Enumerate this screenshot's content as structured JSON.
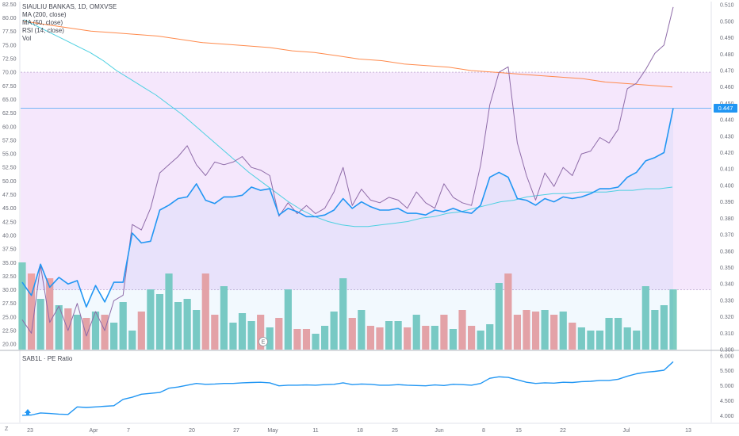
{
  "legend": {
    "title": "SIAULIU BANKAS, 1D, OMXVSE",
    "ma200": "MA (200, close)",
    "ma50": "MA (50, close)",
    "rsi": "RSI (14, close)",
    "vol": "Vol"
  },
  "pe_title": "SAB1L · PE Ratio",
  "last_price_label": "0.447",
  "earnings_marker": "E",
  "corner_z": "Z",
  "colors": {
    "price": "#2196f3",
    "ma200": "#ff8a4c",
    "ma50": "#4dd0e1",
    "rsi": "#8e6ba8",
    "vol_up": "#7ecdc2",
    "vol_down": "#f0a3a3",
    "rsi_band": "#f3e3fc"
  },
  "chart_data": [
    {
      "type": "line",
      "title": "SIAULIU BANKAS, 1D, OMXVSE",
      "x_ticks": [
        "23",
        "Apr",
        "7",
        "20",
        "27",
        "May",
        "11",
        "18",
        "25",
        "Jun",
        "8",
        "15",
        "22",
        "Jul",
        "13"
      ],
      "y_right_ticks": [
        "0.510",
        "0.500",
        "0.490",
        "0.480",
        "0.470",
        "0.460",
        "0.450",
        "0.440",
        "0.430",
        "0.420",
        "0.410",
        "0.400",
        "0.390",
        "0.380",
        "0.370",
        "0.360",
        "0.350",
        "0.340",
        "0.330",
        "0.320",
        "0.310",
        "0.300"
      ],
      "y_right_range": [
        0.3,
        0.512
      ],
      "y_left_ticks": [
        "82.50",
        "80.00",
        "77.50",
        "75.00",
        "72.50",
        "70.00",
        "67.50",
        "65.00",
        "62.50",
        "60.00",
        "57.50",
        "55.00",
        "52.50",
        "50.00",
        "47.50",
        "45.00",
        "42.50",
        "40.00",
        "37.50",
        "35.00",
        "32.50",
        "30.00",
        "27.50",
        "25.00",
        "22.50",
        "20.00"
      ],
      "y_left_range": [
        19.0,
        83.0
      ],
      "rsi_band": [
        30,
        70
      ],
      "series": [
        {
          "name": "SIAULIU BANKAS",
          "axis": "right",
          "values": [
            0.341,
            0.333,
            0.352,
            0.338,
            0.344,
            0.34,
            0.342,
            0.326,
            0.339,
            0.329,
            0.341,
            0.341,
            0.371,
            0.365,
            0.366,
            0.385,
            0.388,
            0.392,
            0.393,
            0.401,
            0.391,
            0.389,
            0.393,
            0.393,
            0.394,
            0.399,
            0.397,
            0.398,
            0.382,
            0.386,
            0.384,
            0.381,
            0.381,
            0.382,
            0.385,
            0.392,
            0.386,
            0.39,
            0.387,
            0.385,
            0.385,
            0.386,
            0.383,
            0.383,
            0.382,
            0.385,
            0.384,
            0.386,
            0.384,
            0.383,
            0.388,
            0.405,
            0.408,
            0.405,
            0.392,
            0.391,
            0.388,
            0.392,
            0.39,
            0.393,
            0.392,
            0.393,
            0.395,
            0.398,
            0.398,
            0.399,
            0.405,
            0.408,
            0.415,
            0.417,
            0.42,
            0.447
          ]
        },
        {
          "name": "MA (200, close)",
          "axis": "right",
          "values": [
            0.5,
            0.498,
            0.496,
            0.494,
            0.493,
            0.492,
            0.491,
            0.489,
            0.487,
            0.486,
            0.485,
            0.484,
            0.482,
            0.481,
            0.479,
            0.477,
            0.476,
            0.474,
            0.473,
            0.472,
            0.47,
            0.469,
            0.468,
            0.467,
            0.466,
            0.465,
            0.463,
            0.462,
            0.461,
            0.46
          ]
        },
        {
          "name": "MA (50, close)",
          "axis": "right",
          "values": [
            0.501,
            0.497,
            0.493,
            0.489,
            0.485,
            0.481,
            0.476,
            0.47,
            0.465,
            0.46,
            0.455,
            0.449,
            0.443,
            0.436,
            0.429,
            0.422,
            0.415,
            0.408,
            0.402,
            0.396,
            0.39,
            0.385,
            0.381,
            0.378,
            0.376,
            0.375,
            0.375,
            0.376,
            0.377,
            0.378,
            0.38,
            0.381,
            0.383,
            0.384,
            0.386,
            0.388,
            0.39,
            0.391,
            0.393,
            0.394,
            0.395,
            0.395,
            0.396,
            0.396,
            0.396,
            0.397,
            0.397,
            0.398,
            0.398,
            0.399
          ]
        },
        {
          "name": "RSI (14, close)",
          "axis": "left",
          "values": [
            24.5,
            22.0,
            34.5,
            24.0,
            27.0,
            22.5,
            27.5,
            21.5,
            26.0,
            22.5,
            28.0,
            29.0,
            42.0,
            41.0,
            45.0,
            51.5,
            53.0,
            54.5,
            56.5,
            53.0,
            51.0,
            53.5,
            53.0,
            53.5,
            54.5,
            52.5,
            52.0,
            51.0,
            43.5,
            46.0,
            44.0,
            45.5,
            44.0,
            45.0,
            48.0,
            52.5,
            45.5,
            48.5,
            46.5,
            46.0,
            47.0,
            46.5,
            45.0,
            48.0,
            46.0,
            45.0,
            49.5,
            47.0,
            46.0,
            45.5,
            53.0,
            64.0,
            70.0,
            71.0,
            57.0,
            51.0,
            46.5,
            51.5,
            49.0,
            52.5,
            51.0,
            55.0,
            55.5,
            58.0,
            57.0,
            59.5,
            67.0,
            68.0,
            70.5,
            73.5,
            75.0,
            82.0
          ]
        },
        {
          "name": "Vol",
          "axis": "volume",
          "values": [
            55,
            48,
            32,
            45,
            28,
            26,
            22,
            20,
            24,
            22,
            17,
            30,
            12,
            24,
            38,
            35,
            48,
            30,
            32,
            25,
            48,
            22,
            40,
            17,
            23,
            18,
            22,
            14,
            20,
            38,
            13,
            13,
            10,
            15,
            24,
            45,
            20,
            25,
            15,
            14,
            18,
            18,
            14,
            22,
            15,
            15,
            22,
            13,
            25,
            15,
            12,
            16,
            42,
            48,
            22,
            25,
            24,
            25,
            22,
            24,
            17,
            14,
            12,
            12,
            20,
            20,
            14,
            12,
            40,
            25,
            28,
            38
          ]
        }
      ]
    },
    {
      "type": "line",
      "title": "SAB1L · PE Ratio",
      "y_right_ticks": [
        "6.000",
        "5.500",
        "5.000",
        "4.500",
        "4.000"
      ],
      "y_range": [
        3.78,
        6.02
      ],
      "series": [
        {
          "name": "SAB1L · PE Ratio",
          "values": [
            4.02,
            4.03,
            4.1,
            4.08,
            4.06,
            4.05,
            4.3,
            4.28,
            4.3,
            4.32,
            4.34,
            4.55,
            4.62,
            4.72,
            4.75,
            4.78,
            4.92,
            4.96,
            5.02,
            5.08,
            5.05,
            5.06,
            5.08,
            5.08,
            5.1,
            5.11,
            5.12,
            5.1,
            5.0,
            5.02,
            5.02,
            5.03,
            5.02,
            5.04,
            5.05,
            5.1,
            5.04,
            5.06,
            5.05,
            5.02,
            5.02,
            5.04,
            5.02,
            5.01,
            5.0,
            5.03,
            5.01,
            5.05,
            5.04,
            5.02,
            5.08,
            5.25,
            5.3,
            5.28,
            5.2,
            5.12,
            5.08,
            5.1,
            5.09,
            5.12,
            5.11,
            5.14,
            5.15,
            5.18,
            5.18,
            5.22,
            5.32,
            5.4,
            5.45,
            5.48,
            5.52,
            5.8
          ]
        }
      ]
    }
  ]
}
